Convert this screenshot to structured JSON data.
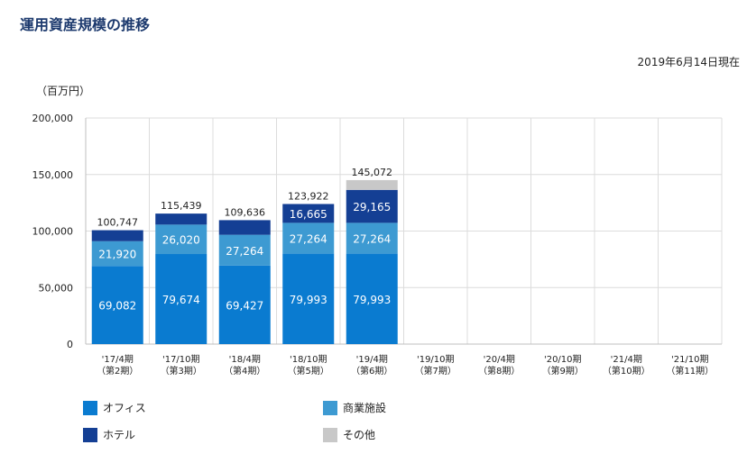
{
  "title": "運用資産規模の推移",
  "as_of": "2019年6月14日現在",
  "unit_label": "（百万円）",
  "colors": {
    "office": "#0a7bd0",
    "retail": "#3d9ad2",
    "hotel": "#143f94",
    "other": "#c8c8c8",
    "grid": "#dcdcdc",
    "axis": "#bfbfbf",
    "value_text": "#ffffff",
    "total_text": "#222222"
  },
  "chart_data": {
    "type": "bar",
    "stacked": true,
    "ylim": [
      0,
      200000
    ],
    "yticks": [
      0,
      50000,
      100000,
      150000,
      200000
    ],
    "ytick_labels": [
      "0",
      "50,000",
      "100,000",
      "150,000",
      "200,000"
    ],
    "grid": true,
    "legend_position": "bottom",
    "categories": [
      [
        "'17/4期",
        "（第2期）"
      ],
      [
        "'17/10期",
        "（第3期）"
      ],
      [
        "'18/4期",
        "（第4期）"
      ],
      [
        "'18/10期",
        "（第5期）"
      ],
      [
        "'19/4期",
        "（第6期）"
      ],
      [
        "'19/10期",
        "（第7期）"
      ],
      [
        "'20/4期",
        "（第8期）"
      ],
      [
        "'20/10期",
        "（第9期）"
      ],
      [
        "'21/4期",
        "（第10期）"
      ],
      [
        "'21/10期",
        "（第11期）"
      ]
    ],
    "series": [
      {
        "key": "office",
        "name": "オフィス",
        "values": [
          69082,
          79674,
          69427,
          79993,
          79993,
          null,
          null,
          null,
          null,
          null
        ],
        "labels": [
          "69,082",
          "79,674",
          "69,427",
          "79,993",
          "79,993",
          null,
          null,
          null,
          null,
          null
        ]
      },
      {
        "key": "retail",
        "name": "商業施設",
        "values": [
          21920,
          26020,
          27264,
          27264,
          27264,
          null,
          null,
          null,
          null,
          null
        ],
        "labels": [
          "21,920",
          "26,020",
          "27,264",
          "27,264",
          "27,264",
          null,
          null,
          null,
          null,
          null
        ]
      },
      {
        "key": "hotel",
        "name": "ホテル",
        "values": [
          9745,
          9745,
          12945,
          16665,
          29165,
          null,
          null,
          null,
          null,
          null
        ],
        "labels": [
          null,
          null,
          null,
          "16,665",
          "29,165",
          null,
          null,
          null,
          null,
          null
        ]
      },
      {
        "key": "other",
        "name": "その他",
        "values": [
          0,
          0,
          0,
          0,
          8650,
          null,
          null,
          null,
          null,
          null
        ],
        "labels": [
          null,
          null,
          null,
          null,
          null,
          null,
          null,
          null,
          null,
          null
        ]
      }
    ],
    "totals": [
      100747,
      115439,
      109636,
      123922,
      145072,
      null,
      null,
      null,
      null,
      null
    ],
    "total_labels": [
      "100,747",
      "115,439",
      "109,636",
      "123,922",
      "145,072",
      null,
      null,
      null,
      null,
      null
    ]
  },
  "legend": [
    {
      "key": "office",
      "label": "オフィス"
    },
    {
      "key": "retail",
      "label": "商業施設"
    },
    {
      "key": "hotel",
      "label": "ホテル"
    },
    {
      "key": "other",
      "label": "その他"
    }
  ]
}
